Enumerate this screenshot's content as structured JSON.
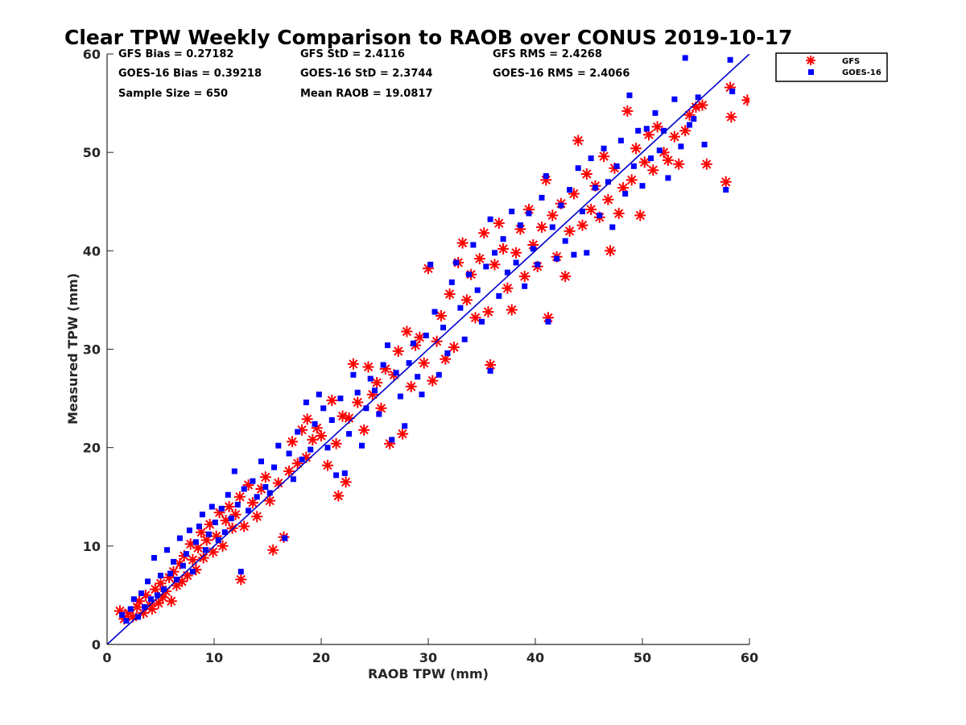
{
  "chart_data": {
    "type": "scatter",
    "title": "Clear TPW Weekly Comparison to RAOB over CONUS 2019-10-17",
    "xlabel": "RAOB TPW (mm)",
    "ylabel": "Measured TPW (mm)",
    "xlim": [
      0,
      60
    ],
    "ylim": [
      0,
      60
    ],
    "xticks": [
      0,
      10,
      20,
      30,
      40,
      50,
      60
    ],
    "yticks": [
      0,
      10,
      20,
      30,
      40,
      50,
      60
    ],
    "xtick_labels": [
      "0",
      "10",
      "20",
      "30",
      "40",
      "50",
      "60"
    ],
    "ytick_labels": [
      "0",
      "10",
      "20",
      "30",
      "40",
      "50",
      "60"
    ],
    "grid": false,
    "legend_position": "outside-top-right",
    "reference_line": {
      "name": "1:1 line",
      "from": [
        0,
        0
      ],
      "to": [
        60,
        60
      ],
      "color": "#0000cc"
    },
    "stats": {
      "gfs_bias": "GFS Bias = 0.27182",
      "goes_bias": "GOES-16 Bias = 0.39218",
      "sample_size": "Sample Size = 650",
      "gfs_std": "GFS StD = 2.4116",
      "goes_std": "GOES-16 StD = 2.3744",
      "mean_raob": "Mean RAOB = 19.0817",
      "gfs_rms": "GFS RMS = 2.4268",
      "goes_rms": "GOES-16 RMS = 2.4066"
    },
    "series": [
      {
        "name": "GFS",
        "marker": "asterisk",
        "color": "#ff0000",
        "points": [
          [
            1.2,
            3.4
          ],
          [
            1.6,
            2.6
          ],
          [
            2.0,
            3.2
          ],
          [
            2.4,
            2.8
          ],
          [
            2.8,
            3.8
          ],
          [
            3.0,
            4.4
          ],
          [
            3.4,
            3.2
          ],
          [
            3.6,
            5.0
          ],
          [
            4.0,
            4.0
          ],
          [
            4.2,
            3.6
          ],
          [
            4.5,
            5.6
          ],
          [
            4.8,
            4.2
          ],
          [
            5.0,
            6.2
          ],
          [
            5.2,
            4.8
          ],
          [
            5.5,
            5.4
          ],
          [
            5.8,
            6.8
          ],
          [
            6.0,
            4.4
          ],
          [
            6.2,
            7.4
          ],
          [
            6.5,
            6.0
          ],
          [
            6.8,
            8.2
          ],
          [
            7.0,
            6.4
          ],
          [
            7.2,
            9.0
          ],
          [
            7.5,
            7.0
          ],
          [
            7.8,
            10.2
          ],
          [
            8.0,
            8.6
          ],
          [
            8.3,
            7.6
          ],
          [
            8.5,
            9.8
          ],
          [
            8.8,
            11.4
          ],
          [
            9.0,
            8.8
          ],
          [
            9.3,
            10.6
          ],
          [
            9.6,
            12.2
          ],
          [
            9.9,
            9.4
          ],
          [
            10.2,
            11.0
          ],
          [
            10.5,
            13.4
          ],
          [
            10.8,
            10.0
          ],
          [
            11.1,
            12.6
          ],
          [
            11.4,
            14.0
          ],
          [
            11.7,
            11.8
          ],
          [
            12.0,
            13.2
          ],
          [
            12.4,
            15.0
          ],
          [
            12.5,
            6.6
          ],
          [
            12.8,
            12.0
          ],
          [
            13.2,
            16.2
          ],
          [
            13.6,
            14.4
          ],
          [
            14.0,
            13.0
          ],
          [
            14.4,
            15.8
          ],
          [
            14.8,
            17.0
          ],
          [
            15.2,
            14.6
          ],
          [
            15.5,
            9.6
          ],
          [
            16.0,
            16.4
          ],
          [
            16.5,
            10.9
          ],
          [
            17.0,
            17.6
          ],
          [
            17.3,
            20.6
          ],
          [
            17.8,
            18.4
          ],
          [
            18.2,
            21.8
          ],
          [
            18.6,
            19.0
          ],
          [
            18.7,
            22.9
          ],
          [
            19.2,
            20.8
          ],
          [
            19.6,
            22.0
          ],
          [
            20.0,
            21.2
          ],
          [
            20.6,
            18.2
          ],
          [
            21.0,
            24.8
          ],
          [
            21.4,
            20.4
          ],
          [
            21.6,
            15.1
          ],
          [
            22.0,
            23.2
          ],
          [
            22.3,
            16.5
          ],
          [
            22.6,
            23.0
          ],
          [
            23.0,
            28.5
          ],
          [
            23.4,
            24.6
          ],
          [
            24.0,
            21.8
          ],
          [
            24.4,
            28.2
          ],
          [
            24.8,
            25.4
          ],
          [
            25.2,
            26.6
          ],
          [
            25.6,
            24.0
          ],
          [
            26.0,
            28.0
          ],
          [
            26.4,
            20.4
          ],
          [
            26.8,
            27.4
          ],
          [
            27.2,
            29.8
          ],
          [
            27.6,
            21.4
          ],
          [
            28.0,
            31.8
          ],
          [
            28.4,
            26.2
          ],
          [
            28.8,
            30.4
          ],
          [
            29.2,
            31.2
          ],
          [
            29.6,
            28.6
          ],
          [
            30.0,
            38.2
          ],
          [
            30.4,
            26.8
          ],
          [
            30.8,
            30.8
          ],
          [
            31.2,
            33.4
          ],
          [
            31.6,
            29.0
          ],
          [
            32.0,
            35.6
          ],
          [
            32.4,
            30.2
          ],
          [
            32.8,
            38.8
          ],
          [
            33.2,
            40.8
          ],
          [
            33.6,
            35.0
          ],
          [
            34.0,
            37.6
          ],
          [
            34.4,
            33.2
          ],
          [
            34.8,
            39.2
          ],
          [
            35.2,
            41.8
          ],
          [
            35.6,
            33.8
          ],
          [
            35.8,
            28.4
          ],
          [
            36.2,
            38.6
          ],
          [
            36.6,
            42.8
          ],
          [
            37.0,
            40.2
          ],
          [
            37.4,
            36.2
          ],
          [
            37.8,
            34.0
          ],
          [
            38.2,
            39.8
          ],
          [
            38.6,
            42.2
          ],
          [
            39.0,
            37.4
          ],
          [
            39.4,
            44.2
          ],
          [
            39.8,
            40.6
          ],
          [
            40.2,
            38.4
          ],
          [
            40.6,
            42.4
          ],
          [
            41.0,
            47.2
          ],
          [
            41.2,
            33.2
          ],
          [
            41.6,
            43.6
          ],
          [
            42.0,
            39.4
          ],
          [
            42.4,
            44.8
          ],
          [
            42.8,
            37.4
          ],
          [
            43.2,
            42.0
          ],
          [
            43.6,
            45.8
          ],
          [
            44.0,
            51.2
          ],
          [
            44.4,
            42.6
          ],
          [
            44.8,
            47.8
          ],
          [
            45.2,
            44.2
          ],
          [
            45.6,
            46.6
          ],
          [
            46.0,
            43.4
          ],
          [
            46.4,
            49.6
          ],
          [
            46.8,
            45.2
          ],
          [
            47.0,
            40.0
          ],
          [
            47.4,
            48.4
          ],
          [
            47.8,
            43.8
          ],
          [
            48.2,
            46.4
          ],
          [
            48.6,
            54.2
          ],
          [
            49.0,
            47.2
          ],
          [
            49.4,
            50.4
          ],
          [
            49.8,
            43.6
          ],
          [
            50.2,
            49.0
          ],
          [
            50.6,
            51.8
          ],
          [
            51.0,
            48.2
          ],
          [
            51.4,
            52.6
          ],
          [
            52.0,
            50.0
          ],
          [
            52.4,
            49.2
          ],
          [
            53.0,
            51.6
          ],
          [
            53.4,
            48.8
          ],
          [
            54.0,
            52.2
          ],
          [
            54.4,
            53.8
          ],
          [
            55.0,
            54.6
          ],
          [
            55.6,
            54.8
          ],
          [
            56.0,
            48.8
          ],
          [
            57.8,
            47.0
          ],
          [
            58.2,
            56.6
          ],
          [
            58.3,
            53.6
          ],
          [
            59.8,
            55.3
          ]
        ]
      },
      {
        "name": "GOES-16",
        "marker": "square",
        "color": "#0000ff",
        "points": [
          [
            1.4,
            3.0
          ],
          [
            1.8,
            2.4
          ],
          [
            2.2,
            3.6
          ],
          [
            2.5,
            4.6
          ],
          [
            2.9,
            2.8
          ],
          [
            3.2,
            5.2
          ],
          [
            3.5,
            3.8
          ],
          [
            3.8,
            6.4
          ],
          [
            4.1,
            4.6
          ],
          [
            4.4,
            8.8
          ],
          [
            4.7,
            5.0
          ],
          [
            5.0,
            7.0
          ],
          [
            5.3,
            5.6
          ],
          [
            5.6,
            9.6
          ],
          [
            5.9,
            7.2
          ],
          [
            6.2,
            8.4
          ],
          [
            6.5,
            6.6
          ],
          [
            6.8,
            10.8
          ],
          [
            7.1,
            8.0
          ],
          [
            7.4,
            9.2
          ],
          [
            7.7,
            11.6
          ],
          [
            8.0,
            7.4
          ],
          [
            8.3,
            10.4
          ],
          [
            8.6,
            12.0
          ],
          [
            8.9,
            13.2
          ],
          [
            9.2,
            9.6
          ],
          [
            9.5,
            11.2
          ],
          [
            9.8,
            14.0
          ],
          [
            10.1,
            12.4
          ],
          [
            10.4,
            10.6
          ],
          [
            10.7,
            13.8
          ],
          [
            11.0,
            11.4
          ],
          [
            11.3,
            15.2
          ],
          [
            11.6,
            12.8
          ],
          [
            11.9,
            17.6
          ],
          [
            12.2,
            14.2
          ],
          [
            12.5,
            7.4
          ],
          [
            12.8,
            15.8
          ],
          [
            13.2,
            13.6
          ],
          [
            13.6,
            16.6
          ],
          [
            14.0,
            15.0
          ],
          [
            14.4,
            18.6
          ],
          [
            14.8,
            16.0
          ],
          [
            15.2,
            15.4
          ],
          [
            15.6,
            18.0
          ],
          [
            16.0,
            20.2
          ],
          [
            16.6,
            10.8
          ],
          [
            17.0,
            19.4
          ],
          [
            17.4,
            16.8
          ],
          [
            17.8,
            21.6
          ],
          [
            18.2,
            18.8
          ],
          [
            18.6,
            24.6
          ],
          [
            19.0,
            19.8
          ],
          [
            19.4,
            22.4
          ],
          [
            19.8,
            25.4
          ],
          [
            20.2,
            24.0
          ],
          [
            20.6,
            20.0
          ],
          [
            21.0,
            22.8
          ],
          [
            21.4,
            17.2
          ],
          [
            21.8,
            25.0
          ],
          [
            22.2,
            17.4
          ],
          [
            22.6,
            21.4
          ],
          [
            23.0,
            27.4
          ],
          [
            23.4,
            25.6
          ],
          [
            23.8,
            20.2
          ],
          [
            24.2,
            24.0
          ],
          [
            24.6,
            27.0
          ],
          [
            25.0,
            25.8
          ],
          [
            25.4,
            23.4
          ],
          [
            25.8,
            28.4
          ],
          [
            26.2,
            30.4
          ],
          [
            26.6,
            20.8
          ],
          [
            27.0,
            27.6
          ],
          [
            27.4,
            25.2
          ],
          [
            27.8,
            22.2
          ],
          [
            28.2,
            28.6
          ],
          [
            28.6,
            30.6
          ],
          [
            29.0,
            27.2
          ],
          [
            29.4,
            25.4
          ],
          [
            29.8,
            31.4
          ],
          [
            30.2,
            38.6
          ],
          [
            30.6,
            33.8
          ],
          [
            31.0,
            27.4
          ],
          [
            31.4,
            32.2
          ],
          [
            31.8,
            29.6
          ],
          [
            32.2,
            36.8
          ],
          [
            32.6,
            38.8
          ],
          [
            33.0,
            34.2
          ],
          [
            33.4,
            31.0
          ],
          [
            33.8,
            37.6
          ],
          [
            34.2,
            40.6
          ],
          [
            34.6,
            36.0
          ],
          [
            35.0,
            32.8
          ],
          [
            35.4,
            38.4
          ],
          [
            35.8,
            43.2
          ],
          [
            35.8,
            27.8
          ],
          [
            36.2,
            39.8
          ],
          [
            36.6,
            35.4
          ],
          [
            37.0,
            41.2
          ],
          [
            37.4,
            37.8
          ],
          [
            37.8,
            44.0
          ],
          [
            38.2,
            38.8
          ],
          [
            38.6,
            42.6
          ],
          [
            39.0,
            36.4
          ],
          [
            39.4,
            43.8
          ],
          [
            39.8,
            40.2
          ],
          [
            40.2,
            38.6
          ],
          [
            40.6,
            45.4
          ],
          [
            41.0,
            47.6
          ],
          [
            41.2,
            32.8
          ],
          [
            41.6,
            42.4
          ],
          [
            42.0,
            39.2
          ],
          [
            42.4,
            44.6
          ],
          [
            42.8,
            41.0
          ],
          [
            43.2,
            46.2
          ],
          [
            43.6,
            39.6
          ],
          [
            44.0,
            48.4
          ],
          [
            44.4,
            44.0
          ],
          [
            44.8,
            39.8
          ],
          [
            45.2,
            49.4
          ],
          [
            45.6,
            46.4
          ],
          [
            46.0,
            43.6
          ],
          [
            46.4,
            50.4
          ],
          [
            46.8,
            47.0
          ],
          [
            47.2,
            42.4
          ],
          [
            47.6,
            48.6
          ],
          [
            48.0,
            51.2
          ],
          [
            48.4,
            45.8
          ],
          [
            48.8,
            55.8
          ],
          [
            49.2,
            48.6
          ],
          [
            49.6,
            52.2
          ],
          [
            50.0,
            46.6
          ],
          [
            50.4,
            52.4
          ],
          [
            50.8,
            49.4
          ],
          [
            51.2,
            54.0
          ],
          [
            51.6,
            50.2
          ],
          [
            52.0,
            52.2
          ],
          [
            52.4,
            47.4
          ],
          [
            53.0,
            55.4
          ],
          [
            53.6,
            50.6
          ],
          [
            54.0,
            59.6
          ],
          [
            54.4,
            52.8
          ],
          [
            54.8,
            53.4
          ],
          [
            55.2,
            55.6
          ],
          [
            55.8,
            50.8
          ],
          [
            57.8,
            46.2
          ],
          [
            58.2,
            59.4
          ],
          [
            58.4,
            56.2
          ]
        ]
      }
    ]
  }
}
